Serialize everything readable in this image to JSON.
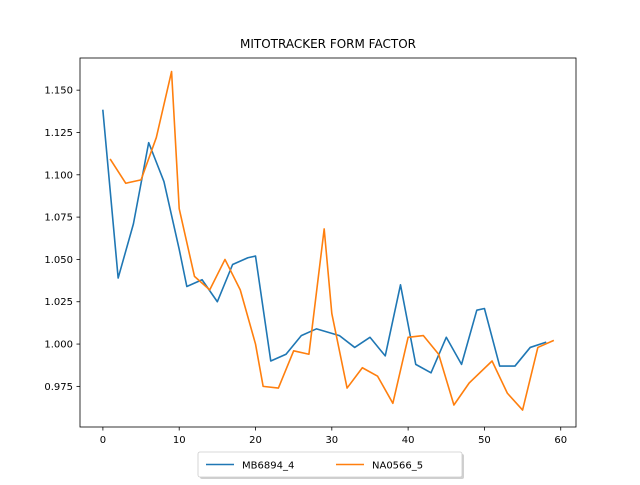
{
  "chart_data": {
    "type": "line",
    "title": "MITOTRACKER FORM FACTOR",
    "xlabel": "",
    "ylabel": "",
    "xlim": [
      -3,
      62.0
    ],
    "ylim": [
      0.951,
      1.169
    ],
    "xticks": [
      0,
      10,
      20,
      30,
      40,
      50,
      60
    ],
    "yticks": [
      0.975,
      1.0,
      1.025,
      1.05,
      1.075,
      1.1,
      1.125,
      1.15
    ],
    "ytick_labels": [
      "0.975",
      "1.000",
      "1.025",
      "1.050",
      "1.075",
      "1.100",
      "1.125",
      "1.150"
    ],
    "grid": false,
    "legend": {
      "placement": "below-center",
      "columns": 2
    },
    "series": [
      {
        "name": "MB6894_4",
        "color": "#1f77b4",
        "x": [
          0,
          2,
          4,
          6,
          8,
          10,
          11,
          13,
          15,
          17,
          19,
          20,
          22,
          24,
          26,
          28,
          31,
          33,
          35,
          37,
          39,
          41,
          43,
          45,
          47,
          49,
          50,
          52,
          54,
          56,
          58
        ],
        "y": [
          1.138,
          1.039,
          1.071,
          1.119,
          1.096,
          1.056,
          1.034,
          1.038,
          1.025,
          1.047,
          1.051,
          1.052,
          0.99,
          0.994,
          1.005,
          1.009,
          1.005,
          0.998,
          1.004,
          0.993,
          1.035,
          0.988,
          0.983,
          1.004,
          0.988,
          1.02,
          1.021,
          0.987,
          0.987,
          0.998,
          1.001
        ]
      },
      {
        "name": "NA0566_5",
        "color": "#ff7f0e",
        "x": [
          1,
          3,
          5,
          7,
          9,
          10,
          12,
          14,
          16,
          18,
          20,
          21,
          23,
          25,
          27,
          29,
          30,
          32,
          34,
          36,
          38,
          40,
          42,
          44,
          46,
          48,
          51,
          53,
          55,
          57,
          59
        ],
        "y": [
          1.109,
          1.095,
          1.097,
          1.122,
          1.161,
          1.08,
          1.04,
          1.032,
          1.05,
          1.032,
          1.0,
          0.975,
          0.974,
          0.996,
          0.994,
          1.068,
          1.018,
          0.974,
          0.986,
          0.981,
          0.965,
          1.004,
          1.005,
          0.994,
          0.964,
          0.977,
          0.99,
          0.971,
          0.961,
          0.998,
          1.002
        ]
      }
    ]
  }
}
